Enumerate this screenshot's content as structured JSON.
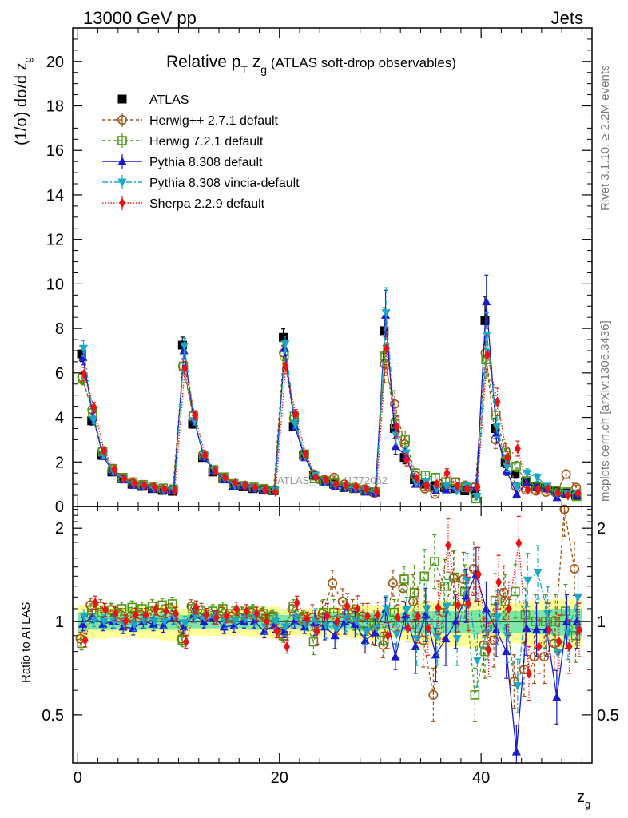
{
  "header": {
    "left": "13000 GeV pp",
    "right": "Jets"
  },
  "title": {
    "pre": "Relative p",
    "sub_t": "T",
    "mid": " z",
    "sub_g": "g",
    "post": " (ATLAS soft-drop observables)"
  },
  "watermark": "ATLAS_2019_I1772062",
  "side_notes": {
    "rivet": "Rivet 3.1.10, ≥ 2.2M events",
    "mcplots": "mcplots.cern.ch [arXiv:1306.3436]"
  },
  "axes": {
    "ylabel_main": "(1/σ) dσ/d z",
    "ylabel_main_sub": "g",
    "ylabel_ratio": "Ratio to ATLAS",
    "xlabel": "z",
    "xlabel_sub": "g",
    "main_yticks": [
      "0",
      "2",
      "4",
      "6",
      "8",
      "10",
      "12",
      "14",
      "16",
      "18",
      "20"
    ],
    "ratio_yticks": [
      "0.5",
      "1",
      "2"
    ],
    "xticks": [
      "0",
      "20",
      "40"
    ]
  },
  "legend": [
    {
      "label": "ATLAS",
      "color": "#000000",
      "marker": "square-filled",
      "line": "none"
    },
    {
      "label": "Herwig++ 2.7.1 default",
      "color": "#a0520f",
      "marker": "circle-open",
      "line": "dashed"
    },
    {
      "label": "Herwig 7.2.1 default",
      "color": "#4a9a18",
      "marker": "square-open",
      "line": "dashed"
    },
    {
      "label": "Pythia 8.308 default",
      "color": "#1a1acc",
      "marker": "triangle-up",
      "line": "solid"
    },
    {
      "label": "Pythia 8.308 vincia-default",
      "color": "#1aa8c8",
      "marker": "triangle-down",
      "line": "dashdot"
    },
    {
      "label": "Sherpa 2.2.9 default",
      "color": "#ee1111",
      "marker": "diamond",
      "line": "dotted"
    }
  ],
  "chart_data": [
    {
      "type": "scatter",
      "panel": "main",
      "title": "Relative pT zg (ATLAS soft-drop observables)",
      "xlabel": "zg",
      "ylabel": "(1/σ) dσ/d zg",
      "xlim": [
        -0.5,
        51
      ],
      "ylim": [
        0,
        21.5
      ],
      "grid": false,
      "legend_position": "top-left",
      "x": [
        0.5,
        1.5,
        2.5,
        3.5,
        4.5,
        5.5,
        6.5,
        7.5,
        8.5,
        9.5,
        10.5,
        11.5,
        12.5,
        13.5,
        14.5,
        15.5,
        16.5,
        17.5,
        18.5,
        19.5,
        20.5,
        21.5,
        22.5,
        23.5,
        24.5,
        25.5,
        26.5,
        27.5,
        28.5,
        29.5,
        30.5,
        31.5,
        32.5,
        33.5,
        34.5,
        35.5,
        36.5,
        37.5,
        38.5,
        39.5,
        40.5,
        41.5,
        42.5,
        43.5,
        44.5,
        45.5,
        46.5,
        47.5,
        48.5,
        49.5
      ],
      "series": [
        {
          "name": "ATLAS",
          "values": [
            6.85,
            3.85,
            2.3,
            1.55,
            1.25,
            1.0,
            0.9,
            0.8,
            0.72,
            0.68,
            7.25,
            3.7,
            2.2,
            1.55,
            1.25,
            0.95,
            0.88,
            0.8,
            0.75,
            0.7,
            7.6,
            3.6,
            2.3,
            1.4,
            1.15,
            1.0,
            0.85,
            0.8,
            0.75,
            0.65,
            7.9,
            3.5,
            2.2,
            1.2,
            1.0,
            0.9,
            0.85,
            0.8,
            0.7,
            0.6,
            8.35,
            3.5,
            2.0,
            1.45,
            1.1,
            0.9,
            0.85,
            0.7,
            0.6,
            0.5
          ]
        },
        {
          "name": "Herwig++ 2.7.1 default",
          "values": [
            5.8,
            4.35,
            2.5,
            1.7,
            1.25,
            1.05,
            0.95,
            0.85,
            0.77,
            0.75,
            6.3,
            4.1,
            2.35,
            1.62,
            1.3,
            1.0,
            0.92,
            0.85,
            0.78,
            0.72,
            6.9,
            3.95,
            2.3,
            1.45,
            1.2,
            1.3,
            1.0,
            0.85,
            0.78,
            0.6,
            6.4,
            4.6,
            2.8,
            1.4,
            0.8,
            0.55,
            0.9,
            1.1,
            0.95,
            0.9,
            6.9,
            3.0,
            2.5,
            0.9,
            0.75,
            0.7,
            0.65,
            0.6,
            1.45,
            0.85
          ]
        },
        {
          "name": "Herwig 7.2.1 default",
          "values": [
            5.75,
            4.2,
            2.45,
            1.7,
            1.3,
            1.1,
            0.98,
            0.9,
            0.82,
            0.78,
            6.3,
            4.05,
            2.3,
            1.65,
            1.32,
            1.02,
            0.93,
            0.86,
            0.8,
            0.72,
            6.8,
            4.05,
            2.35,
            1.25,
            1.15,
            1.05,
            0.9,
            0.82,
            0.7,
            0.65,
            6.75,
            3.7,
            3.0,
            1.5,
            1.4,
            1.3,
            1.1,
            1.1,
            0.85,
            0.35,
            6.6,
            4.1,
            2.3,
            1.8,
            1.15,
            0.9,
            0.85,
            0.7,
            0.65,
            0.45
          ]
        },
        {
          "name": "Pythia 8.308 default",
          "values": [
            6.7,
            4.0,
            2.25,
            1.55,
            1.2,
            0.95,
            0.9,
            0.78,
            0.7,
            0.7,
            7.0,
            3.9,
            2.2,
            1.6,
            1.2,
            0.92,
            0.88,
            0.8,
            0.7,
            0.68,
            7.1,
            3.6,
            2.2,
            1.38,
            1.1,
            0.9,
            0.85,
            0.78,
            0.65,
            0.6,
            8.6,
            2.7,
            2.3,
            1.0,
            1.05,
            0.7,
            0.75,
            0.8,
            0.85,
            0.85,
            9.2,
            3.3,
            1.6,
            0.55,
            1.05,
            0.85,
            0.8,
            0.4,
            0.6,
            0.5
          ]
        },
        {
          "name": "Pythia 8.308 vincia-default",
          "values": [
            7.1,
            3.9,
            2.3,
            1.55,
            1.22,
            0.98,
            0.9,
            0.8,
            0.72,
            0.7,
            7.2,
            3.85,
            2.25,
            1.6,
            1.25,
            0.95,
            0.9,
            0.82,
            0.72,
            0.7,
            7.3,
            3.7,
            2.25,
            1.4,
            1.12,
            0.95,
            0.87,
            0.8,
            0.7,
            0.62,
            8.7,
            3.2,
            2.4,
            1.05,
            1.1,
            0.8,
            0.95,
            0.7,
            0.95,
            0.45,
            7.7,
            3.6,
            1.8,
            0.9,
            1.5,
            1.3,
            0.9,
            0.55,
            0.55,
            0.6
          ]
        },
        {
          "name": "Sherpa 2.2.9 default",
          "values": [
            5.95,
            4.45,
            2.5,
            1.65,
            1.25,
            1.05,
            0.95,
            0.88,
            0.78,
            0.72,
            6.2,
            4.1,
            2.3,
            1.6,
            1.3,
            1.05,
            0.95,
            0.85,
            0.75,
            0.65,
            6.3,
            4.15,
            2.35,
            1.3,
            1.2,
            1.0,
            0.95,
            0.88,
            0.78,
            0.68,
            7.1,
            3.6,
            2.1,
            1.25,
            0.95,
            1.0,
            1.5,
            0.9,
            0.8,
            0.85,
            6.8,
            4.7,
            2.2,
            2.6,
            0.75,
            0.75,
            0.8,
            0.6,
            0.5,
            0.6
          ]
        }
      ]
    },
    {
      "type": "scatter",
      "panel": "ratio",
      "ylabel": "Ratio to ATLAS",
      "xlabel": "zg",
      "ylog": true,
      "xlim": [
        -0.5,
        51
      ],
      "ylim": [
        0.35,
        2.35
      ],
      "grid": false,
      "reference_line": 1,
      "x": [
        0.5,
        1.5,
        2.5,
        3.5,
        4.5,
        5.5,
        6.5,
        7.5,
        8.5,
        9.5,
        10.5,
        11.5,
        12.5,
        13.5,
        14.5,
        15.5,
        16.5,
        17.5,
        18.5,
        19.5,
        20.5,
        21.5,
        22.5,
        23.5,
        24.5,
        25.5,
        26.5,
        27.5,
        28.5,
        29.5,
        30.5,
        31.5,
        32.5,
        33.5,
        34.5,
        35.5,
        36.5,
        37.5,
        38.5,
        39.5,
        40.5,
        41.5,
        42.5,
        43.5,
        44.5,
        45.5,
        46.5,
        47.5,
        48.5,
        49.5
      ],
      "band_inner": [
        0.07,
        0.06,
        0.06,
        0.06,
        0.06,
        0.06,
        0.06,
        0.06,
        0.06,
        0.06,
        0.05,
        0.05,
        0.05,
        0.05,
        0.05,
        0.05,
        0.05,
        0.06,
        0.06,
        0.06,
        0.05,
        0.05,
        0.05,
        0.05,
        0.06,
        0.06,
        0.06,
        0.06,
        0.07,
        0.07,
        0.06,
        0.06,
        0.07,
        0.08,
        0.08,
        0.08,
        0.08,
        0.08,
        0.08,
        0.09,
        0.07,
        0.07,
        0.08,
        0.08,
        0.08,
        0.09,
        0.09,
        0.1,
        0.1,
        0.1
      ],
      "band_outer": [
        0.13,
        0.12,
        0.12,
        0.11,
        0.11,
        0.11,
        0.12,
        0.12,
        0.13,
        0.14,
        0.1,
        0.1,
        0.1,
        0.1,
        0.1,
        0.1,
        0.1,
        0.11,
        0.11,
        0.12,
        0.1,
        0.1,
        0.1,
        0.1,
        0.11,
        0.11,
        0.11,
        0.12,
        0.13,
        0.13,
        0.11,
        0.11,
        0.13,
        0.15,
        0.16,
        0.16,
        0.17,
        0.17,
        0.17,
        0.18,
        0.12,
        0.12,
        0.14,
        0.15,
        0.16,
        0.17,
        0.17,
        0.18,
        0.18,
        0.18
      ],
      "series": [
        {
          "name": "Herwig++ 2.7.1 default",
          "values": [
            0.88,
            1.13,
            1.12,
            1.09,
            1.05,
            1.04,
            1.05,
            1.06,
            1.07,
            1.09,
            0.88,
            1.12,
            1.09,
            1.06,
            1.08,
            1.04,
            1.06,
            1.07,
            1.05,
            1.03,
            0.91,
            1.1,
            1.02,
            1.03,
            1.06,
            1.33,
            1.16,
            1.07,
            1.04,
            0.93,
            0.84,
            1.33,
            1.28,
            1.16,
            0.87,
            0.58,
            1.07,
            1.38,
            1.37,
            1.48,
            0.84,
            0.87,
            1.24,
            0.64,
            0.7,
            0.77,
            0.77,
            0.85,
            2.3,
            1.48
          ]
        },
        {
          "name": "Herwig 7.2.1 default",
          "values": [
            0.85,
            1.09,
            1.07,
            1.09,
            1.1,
            1.11,
            1.1,
            1.12,
            1.13,
            1.14,
            0.87,
            1.1,
            1.06,
            1.08,
            1.1,
            1.06,
            1.06,
            1.08,
            1.06,
            1.04,
            0.9,
            1.12,
            1.03,
            0.86,
            1.07,
            1.07,
            1.06,
            1.03,
            0.93,
            0.99,
            0.87,
            1.07,
            1.37,
            1.24,
            1.4,
            1.56,
            1.3,
            1.39,
            1.25,
            0.58,
            0.8,
            1.17,
            1.16,
            1.25,
            1.05,
            1.0,
            1.0,
            1.0,
            1.08,
            0.9
          ]
        },
        {
          "name": "Pythia 8.308 default",
          "values": [
            0.98,
            1.04,
            0.98,
            1.0,
            0.96,
            0.95,
            1.0,
            0.98,
            0.97,
            1.03,
            0.96,
            1.05,
            1.0,
            1.03,
            0.96,
            0.97,
            1.0,
            1.0,
            0.93,
            0.97,
            0.93,
            1.0,
            0.96,
            0.99,
            0.96,
            0.9,
            1.0,
            0.98,
            0.87,
            0.92,
            1.09,
            0.77,
            1.05,
            0.83,
            1.05,
            0.78,
            0.88,
            1.0,
            1.21,
            1.42,
            1.1,
            0.94,
            0.8,
            0.38,
            0.95,
            0.94,
            0.94,
            0.57,
            1.0,
            1.0
          ]
        },
        {
          "name": "Pythia 8.308 vincia-default",
          "values": [
            1.04,
            1.01,
            1.0,
            1.0,
            0.98,
            0.98,
            1.0,
            1.0,
            1.0,
            1.03,
            0.99,
            1.04,
            1.02,
            1.03,
            1.0,
            1.0,
            1.02,
            1.03,
            0.96,
            1.0,
            0.96,
            1.03,
            0.98,
            1.0,
            0.97,
            0.95,
            1.02,
            1.0,
            0.93,
            0.95,
            1.1,
            0.91,
            1.09,
            0.88,
            1.1,
            0.89,
            1.12,
            0.88,
            1.36,
            0.75,
            0.92,
            1.03,
            0.9,
            0.62,
            1.36,
            1.44,
            1.06,
            0.79,
            0.92,
            1.2
          ]
        },
        {
          "name": "Sherpa 2.2.9 default",
          "values": [
            0.87,
            1.15,
            1.09,
            1.06,
            1.0,
            1.05,
            1.05,
            1.1,
            1.08,
            1.06,
            0.86,
            1.11,
            1.05,
            1.03,
            1.04,
            1.1,
            1.08,
            1.06,
            1.0,
            0.93,
            0.83,
            1.15,
            1.02,
            0.93,
            1.04,
            1.0,
            1.12,
            1.1,
            1.04,
            1.05,
            0.9,
            1.03,
            0.95,
            1.04,
            0.95,
            1.11,
            1.76,
            1.13,
            1.14,
            1.42,
            0.81,
            1.34,
            1.1,
            1.79,
            0.68,
            0.83,
            0.94,
            0.86,
            0.83,
            0.94
          ]
        }
      ]
    }
  ]
}
